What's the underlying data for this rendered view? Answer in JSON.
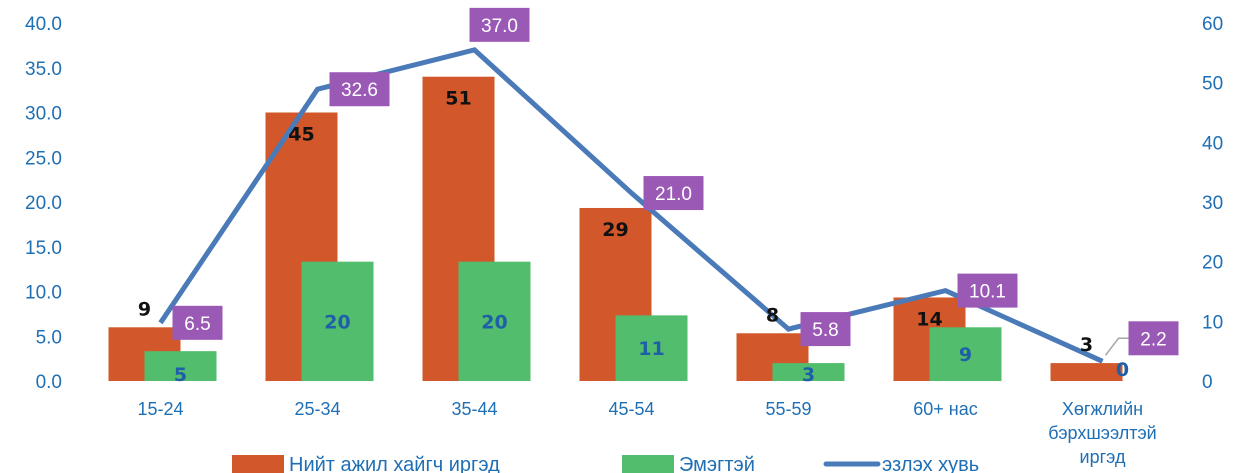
{
  "chart_data": {
    "type": "bar",
    "categories": [
      "15-24",
      "25-34",
      "35-44",
      "45-54",
      "55-59",
      "60+ нас",
      "Хөгжлийн бэрхшээлтэй иргэд"
    ],
    "series": [
      {
        "name": "Нийт ажил хайгч иргэд",
        "kind": "bar",
        "axis": "right",
        "color": "#d2572a",
        "values": [
          9,
          45,
          51,
          29,
          8,
          14,
          3
        ]
      },
      {
        "name": "Эмэгтэй",
        "kind": "bar",
        "axis": "right",
        "color": "#52bd6c",
        "values": [
          5,
          20,
          20,
          11,
          3,
          9,
          0
        ]
      },
      {
        "name": "эзлэх хувь",
        "kind": "line",
        "axis": "left",
        "color": "#4a7ab8",
        "values": [
          6.5,
          32.6,
          37.0,
          21.0,
          5.8,
          10.1,
          2.2
        ]
      }
    ],
    "value_labels": {
      "total": [
        "9",
        "45",
        "51",
        "29",
        "8",
        "14",
        "3"
      ],
      "female": [
        "5",
        "20",
        "20",
        "11",
        "3",
        "9",
        "0"
      ],
      "percent": [
        "6.5",
        "32.6",
        "37.0",
        "21.0",
        "5.8",
        "10.1",
        "2.2"
      ]
    },
    "left_axis": {
      "ticks": [
        "0.0",
        "5.0",
        "10.0",
        "15.0",
        "20.0",
        "25.0",
        "30.0",
        "35.0",
        "40.0"
      ],
      "ylim": [
        0,
        40
      ]
    },
    "right_axis": {
      "ticks": [
        "0",
        "10",
        "20",
        "30",
        "40",
        "50",
        "60"
      ],
      "ylim": [
        0,
        60
      ]
    },
    "category_label_lines": [
      [
        "15-24"
      ],
      [
        "25-34"
      ],
      [
        "35-44"
      ],
      [
        "45-54"
      ],
      [
        "55-59"
      ],
      [
        "60+ нас"
      ],
      [
        "Хөгжлийн",
        "бэрхшээлтэй",
        "иргэд"
      ]
    ],
    "label_box_color": "#9b59b6",
    "grid": false,
    "legend": {
      "position": "bottom"
    }
  }
}
